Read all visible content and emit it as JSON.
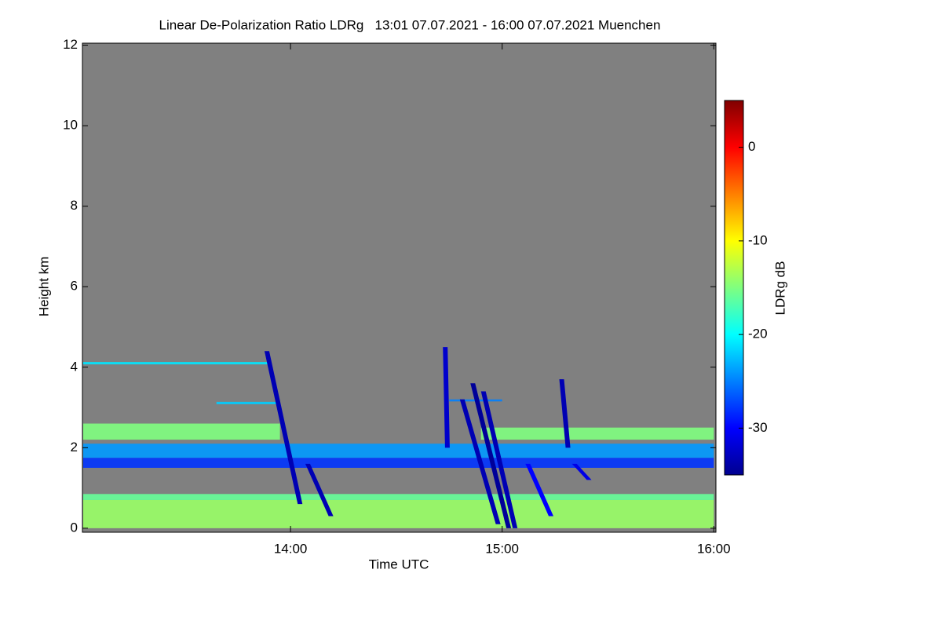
{
  "chart_data": {
    "type": "heatmap",
    "title": "Linear De-Polarization Ratio LDRg   13:01 07.07.2021 - 16:00 07.07.2021 Muenchen",
    "x_label": "Time UTC",
    "y_label": "Height km",
    "colorbar_label": "LDRg dB",
    "colormap": "jet",
    "xlim": [
      13.0167,
      16.01
    ],
    "xticks": [
      {
        "value": 14,
        "label": "14:00"
      },
      {
        "value": 15,
        "label": "15:00"
      },
      {
        "value": 16,
        "label": "16:00"
      }
    ],
    "ylim": [
      -0.1,
      12.05
    ],
    "yticks": [
      0,
      2,
      4,
      6,
      8,
      10,
      12
    ],
    "clim": [
      -35,
      5
    ],
    "cticks": [
      0,
      -10,
      -20,
      -30
    ],
    "regions": [
      {
        "t": [
          13.02,
          16.0
        ],
        "h": [
          0.0,
          0.7
        ],
        "ldr": -14
      },
      {
        "t": [
          13.02,
          16.0
        ],
        "h": [
          0.7,
          0.85
        ],
        "ldr": -16
      },
      {
        "t": [
          13.02,
          16.0
        ],
        "h": [
          1.5,
          1.75
        ],
        "ldr": -28
      },
      {
        "t": [
          13.02,
          16.0
        ],
        "h": [
          1.75,
          2.1
        ],
        "ldr": -24
      },
      {
        "t": [
          13.02,
          13.95
        ],
        "h": [
          2.2,
          2.6
        ],
        "ldr": -15
      },
      {
        "t": [
          14.9,
          16.0
        ],
        "h": [
          2.2,
          2.5
        ],
        "ldr": -15
      },
      {
        "t": [
          13.02,
          13.9
        ],
        "h": [
          4.07,
          4.13
        ],
        "ldr": -21
      },
      {
        "t": [
          13.65,
          13.95
        ],
        "h": [
          3.08,
          3.14
        ],
        "ldr": -22
      },
      {
        "t": [
          14.75,
          15.0
        ],
        "h": [
          3.15,
          3.2
        ],
        "ldr": -25
      }
    ],
    "streaks": [
      {
        "t": [
          13.877,
          14.034
        ],
        "h": [
          0.6,
          4.4
        ],
        "ldr": -33
      },
      {
        "t": [
          14.07,
          14.18
        ],
        "h": [
          0.3,
          1.6
        ],
        "ldr": -33
      },
      {
        "t": [
          14.8,
          14.97
        ],
        "h": [
          0.1,
          3.2
        ],
        "ldr": -33
      },
      {
        "t": [
          14.85,
          15.02
        ],
        "h": [
          0.0,
          3.6
        ],
        "ldr": -34
      },
      {
        "t": [
          14.9,
          15.05
        ],
        "h": [
          0.0,
          3.4
        ],
        "ldr": -33
      },
      {
        "t": [
          14.72,
          14.73
        ],
        "h": [
          2.0,
          4.5
        ],
        "ldr": -32
      },
      {
        "t": [
          15.27,
          15.3
        ],
        "h": [
          2.0,
          3.7
        ],
        "ldr": -33
      },
      {
        "t": [
          15.11,
          15.22
        ],
        "h": [
          0.3,
          1.6
        ],
        "ldr": -30
      },
      {
        "t": [
          15.33,
          15.4
        ],
        "h": [
          1.2,
          1.6
        ],
        "ldr": -31
      }
    ]
  }
}
